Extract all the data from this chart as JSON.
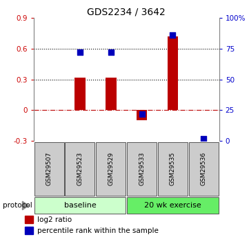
{
  "title": "GDS2234 / 3642",
  "samples": [
    "GSM29507",
    "GSM29523",
    "GSM29529",
    "GSM29533",
    "GSM29535",
    "GSM29536"
  ],
  "log2_ratio": [
    0.0,
    0.32,
    0.32,
    -0.1,
    0.72,
    0.0
  ],
  "percentile_rank": [
    null,
    72,
    72,
    22,
    86,
    2
  ],
  "ylim_left": [
    -0.3,
    0.9
  ],
  "ylim_right": [
    0,
    100
  ],
  "yticks_left": [
    -0.3,
    0.0,
    0.3,
    0.6,
    0.9
  ],
  "ytick_labels_left": [
    "-0.3",
    "0",
    "0.3",
    "0.6",
    "0.9"
  ],
  "yticks_right": [
    0,
    25,
    50,
    75,
    100
  ],
  "ytick_labels_right": [
    "0",
    "25",
    "50",
    "75",
    "100%"
  ],
  "hlines_dotted": [
    0.3,
    0.6
  ],
  "hline_dashdot": 0.0,
  "bar_color": "#bb0000",
  "dot_color": "#0000bb",
  "bar_width": 0.35,
  "protocol_groups": [
    {
      "label": "baseline",
      "start": 0,
      "end": 3,
      "color": "#ccffcc"
    },
    {
      "label": "20 wk exercise",
      "start": 3,
      "end": 6,
      "color": "#66ee66"
    }
  ],
  "protocol_label": "protocol",
  "legend_bar_label": "log2 ratio",
  "legend_dot_label": "percentile rank within the sample",
  "x_positions": [
    0,
    1,
    2,
    3,
    4,
    5
  ],
  "left_tick_color": "#cc0000",
  "right_tick_color": "#0000cc",
  "title_fontsize": 10,
  "tick_fontsize": 7.5,
  "sample_fontsize": 6.5,
  "proto_fontsize": 8,
  "legend_fontsize": 7.5
}
